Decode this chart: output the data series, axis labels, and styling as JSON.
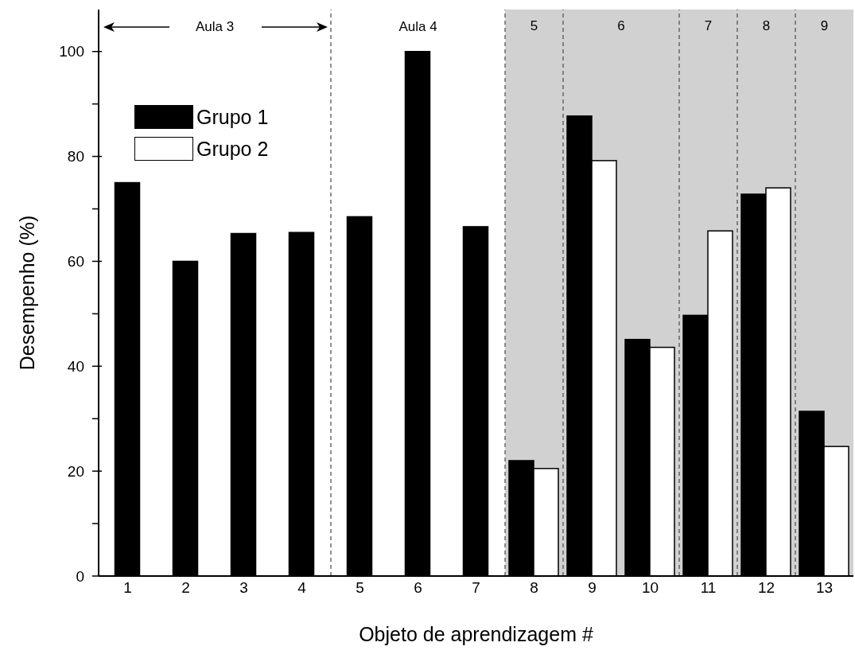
{
  "chart_data": {
    "type": "bar",
    "xlabel": "Objeto de aprendizagem #",
    "ylabel": "Desempenho (%)",
    "x": [
      1,
      2,
      3,
      4,
      5,
      6,
      7,
      8,
      9,
      10,
      11,
      12,
      13
    ],
    "xlim": [
      0.5,
      13.5
    ],
    "xticks": [
      1,
      2,
      3,
      4,
      5,
      6,
      7,
      8,
      9,
      10,
      11,
      12,
      13
    ],
    "ylim": [
      0,
      108
    ],
    "yticks": [
      0,
      {
        "value": 10,
        "label": null
      },
      20,
      {
        "value": 30,
        "label": null
      },
      40,
      {
        "value": 50,
        "label": null
      },
      60,
      {
        "value": 70,
        "label": null
      },
      80,
      {
        "value": 90,
        "label": null
      },
      100
    ],
    "series": [
      {
        "name": "Grupo 1",
        "color": "#000000",
        "values": [
          75,
          60,
          65.3,
          65.5,
          68.5,
          100,
          66.6,
          22,
          87.7,
          45.1,
          49.7,
          72.8,
          31.4
        ]
      },
      {
        "name": "Grupo 2",
        "color": "#ffffff",
        "values": [
          null,
          null,
          null,
          null,
          null,
          null,
          null,
          20.5,
          79.2,
          43.6,
          65.8,
          74,
          24.7
        ]
      }
    ],
    "bands": [
      {
        "axis": "x",
        "from": 7.5,
        "to": 8.5,
        "label": "5",
        "color": "#d1d1d1"
      },
      {
        "axis": "x",
        "from": 8.5,
        "to": 10.5,
        "label": "6",
        "color": "#d1d1d1"
      },
      {
        "axis": "x",
        "from": 10.5,
        "to": 11.5,
        "label": "7",
        "color": "#d1d1d1"
      },
      {
        "axis": "x",
        "from": 11.5,
        "to": 12.5,
        "label": "8",
        "color": "#d1d1d1"
      },
      {
        "axis": "x",
        "from": 12.5,
        "to": 13.5,
        "label": "9",
        "color": "#d1d1d1"
      }
    ],
    "ref_lines": [
      {
        "axis": "x",
        "value": 4.5,
        "color": "#555555",
        "line_style": "dashed"
      },
      {
        "axis": "x",
        "value": 7.5,
        "color": "#555555",
        "line_style": "dashed"
      },
      {
        "axis": "x",
        "value": 8.5,
        "color": "#555555",
        "line_style": "dashed"
      },
      {
        "axis": "x",
        "value": 10.5,
        "color": "#555555",
        "line_style": "dashed"
      },
      {
        "axis": "x",
        "value": 11.5,
        "color": "#555555",
        "line_style": "dashed"
      },
      {
        "axis": "x",
        "value": 12.5,
        "color": "#555555",
        "line_style": "dashed"
      }
    ],
    "annotations": [
      "Aula 3",
      "Aula 4"
    ],
    "legend": "top left"
  }
}
